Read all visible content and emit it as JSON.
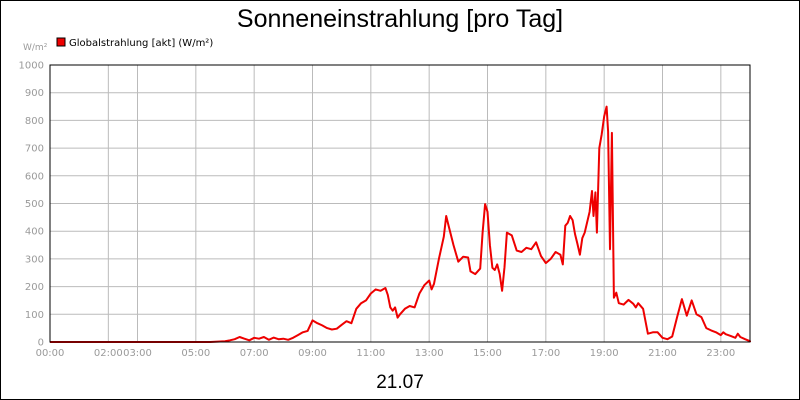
{
  "chart_data": {
    "type": "line",
    "title": "Sonneneinstrahlung [pro Tag]",
    "xlabel": "21.07",
    "ylabel": "W/m²",
    "ylim": [
      0,
      1000
    ],
    "xlim": [
      "00:00",
      "24:00"
    ],
    "yticks": [
      0,
      100,
      200,
      300,
      400,
      500,
      600,
      700,
      800,
      900,
      1000
    ],
    "xticks": [
      {
        "t": "00:00",
        "label": "00:00"
      },
      {
        "t": "02:00",
        "label": "02:00"
      },
      {
        "t": "03:00",
        "label": "03:00"
      },
      {
        "t": "05:00",
        "label": "05:00"
      },
      {
        "t": "07:00",
        "label": "07:00"
      },
      {
        "t": "09:00",
        "label": "09:00"
      },
      {
        "t": "11:00",
        "label": "11:00"
      },
      {
        "t": "13:00",
        "label": "13:00"
      },
      {
        "t": "15:00",
        "label": "15:00"
      },
      {
        "t": "17:00",
        "label": "17:00"
      },
      {
        "t": "19:00",
        "label": "19:00"
      },
      {
        "t": "21:00",
        "label": "21:00"
      },
      {
        "t": "23:00",
        "label": "23:00"
      }
    ],
    "grid": true,
    "legend_position": "top-left",
    "colors": {
      "series": "#ee0000",
      "grid": "#bbbbbb",
      "axis_text": "#9a9a9a",
      "plot_border": "#000000"
    },
    "series": [
      {
        "name": "Globalstrahlung [akt] (W/m²)",
        "points": [
          [
            "00:00",
            0
          ],
          [
            "05:30",
            0
          ],
          [
            "06:00",
            3
          ],
          [
            "06:10",
            6
          ],
          [
            "06:20",
            10
          ],
          [
            "06:30",
            18
          ],
          [
            "06:40",
            12
          ],
          [
            "06:50",
            6
          ],
          [
            "07:00",
            15
          ],
          [
            "07:10",
            12
          ],
          [
            "07:20",
            18
          ],
          [
            "07:30",
            8
          ],
          [
            "07:40",
            16
          ],
          [
            "07:50",
            10
          ],
          [
            "08:00",
            12
          ],
          [
            "08:10",
            8
          ],
          [
            "08:20",
            15
          ],
          [
            "08:30",
            25
          ],
          [
            "08:40",
            35
          ],
          [
            "08:50",
            40
          ],
          [
            "09:00",
            78
          ],
          [
            "09:10",
            68
          ],
          [
            "09:20",
            60
          ],
          [
            "09:30",
            50
          ],
          [
            "09:40",
            45
          ],
          [
            "09:50",
            48
          ],
          [
            "10:00",
            62
          ],
          [
            "10:10",
            75
          ],
          [
            "10:20",
            68
          ],
          [
            "10:30",
            120
          ],
          [
            "10:40",
            140
          ],
          [
            "10:50",
            150
          ],
          [
            "11:00",
            175
          ],
          [
            "11:10",
            190
          ],
          [
            "11:20",
            185
          ],
          [
            "11:30",
            195
          ],
          [
            "11:35",
            170
          ],
          [
            "11:40",
            125
          ],
          [
            "11:45",
            113
          ],
          [
            "11:50",
            125
          ],
          [
            "11:55",
            88
          ],
          [
            "12:00",
            100
          ],
          [
            "12:10",
            120
          ],
          [
            "12:20",
            130
          ],
          [
            "12:30",
            125
          ],
          [
            "12:40",
            175
          ],
          [
            "12:50",
            205
          ],
          [
            "13:00",
            222
          ],
          [
            "13:05",
            190
          ],
          [
            "13:10",
            210
          ],
          [
            "13:20",
            300
          ],
          [
            "13:30",
            380
          ],
          [
            "13:35",
            455
          ],
          [
            "13:40",
            420
          ],
          [
            "13:50",
            350
          ],
          [
            "14:00",
            290
          ],
          [
            "14:10",
            308
          ],
          [
            "14:20",
            305
          ],
          [
            "14:25",
            255
          ],
          [
            "14:35",
            245
          ],
          [
            "14:45",
            265
          ],
          [
            "14:50",
            395
          ],
          [
            "14:55",
            498
          ],
          [
            "15:00",
            470
          ],
          [
            "15:05",
            350
          ],
          [
            "15:10",
            268
          ],
          [
            "15:15",
            260
          ],
          [
            "15:20",
            280
          ],
          [
            "15:25",
            245
          ],
          [
            "15:30",
            185
          ],
          [
            "15:35",
            270
          ],
          [
            "15:40",
            395
          ],
          [
            "15:50",
            385
          ],
          [
            "16:00",
            330
          ],
          [
            "16:10",
            325
          ],
          [
            "16:20",
            340
          ],
          [
            "16:30",
            335
          ],
          [
            "16:40",
            360
          ],
          [
            "16:50",
            310
          ],
          [
            "17:00",
            285
          ],
          [
            "17:10",
            300
          ],
          [
            "17:20",
            325
          ],
          [
            "17:30",
            315
          ],
          [
            "17:35",
            280
          ],
          [
            "17:40",
            420
          ],
          [
            "17:45",
            430
          ],
          [
            "17:50",
            455
          ],
          [
            "17:55",
            440
          ],
          [
            "18:00",
            390
          ],
          [
            "18:05",
            355
          ],
          [
            "18:10",
            315
          ],
          [
            "18:15",
            375
          ],
          [
            "18:20",
            395
          ],
          [
            "18:30",
            470
          ],
          [
            "18:35",
            545
          ],
          [
            "18:38",
            455
          ],
          [
            "18:42",
            540
          ],
          [
            "18:45",
            395
          ],
          [
            "18:50",
            700
          ],
          [
            "18:55",
            750
          ],
          [
            "19:00",
            815
          ],
          [
            "19:05",
            850
          ],
          [
            "19:08",
            760
          ],
          [
            "19:12",
            335
          ],
          [
            "19:16",
            755
          ],
          [
            "19:20",
            160
          ],
          [
            "19:25",
            178
          ],
          [
            "19:30",
            140
          ],
          [
            "19:40",
            135
          ],
          [
            "19:50",
            152
          ],
          [
            "20:00",
            138
          ],
          [
            "20:05",
            125
          ],
          [
            "20:10",
            140
          ],
          [
            "20:20",
            120
          ],
          [
            "20:30",
            30
          ],
          [
            "20:40",
            35
          ],
          [
            "20:50",
            35
          ],
          [
            "21:00",
            15
          ],
          [
            "21:10",
            10
          ],
          [
            "21:20",
            20
          ],
          [
            "21:30",
            90
          ],
          [
            "21:40",
            155
          ],
          [
            "21:50",
            95
          ],
          [
            "22:00",
            150
          ],
          [
            "22:10",
            100
          ],
          [
            "22:20",
            90
          ],
          [
            "22:30",
            50
          ],
          [
            "22:40",
            42
          ],
          [
            "22:50",
            35
          ],
          [
            "23:00",
            25
          ],
          [
            "23:05",
            35
          ],
          [
            "23:10",
            28
          ],
          [
            "23:20",
            22
          ],
          [
            "23:30",
            15
          ],
          [
            "23:35",
            30
          ],
          [
            "23:40",
            18
          ],
          [
            "23:50",
            10
          ],
          [
            "24:00",
            3
          ],
          [
            "24:10",
            0
          ],
          [
            "25:00",
            0
          ],
          [
            "27:45",
            0
          ]
        ]
      }
    ]
  }
}
